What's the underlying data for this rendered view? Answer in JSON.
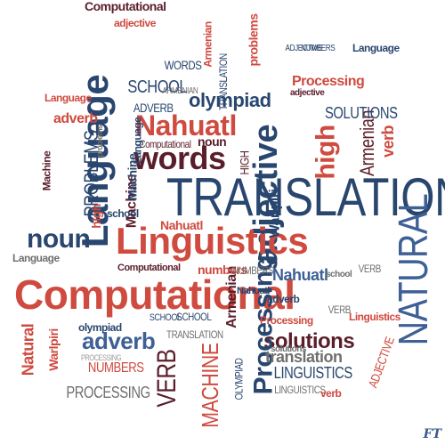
{
  "colors": {
    "red": "#cf4a3f",
    "navy": "#29466f",
    "maroon": "#5a1e2b",
    "grey": "#6f6f6f",
    "lightgrey": "#9a9a9a",
    "blue": "#3e6096"
  },
  "watermark": "FT",
  "words": [
    {
      "text": "Computational",
      "color": "maroon"
    },
    {
      "text": "adjective",
      "color": "navy"
    },
    {
      "text": "Language",
      "color": "navy"
    },
    {
      "text": "Nahuatl",
      "color": "red"
    },
    {
      "text": "words",
      "color": "maroon"
    },
    {
      "text": "olympiad",
      "color": "navy"
    },
    {
      "text": "TRANSLATION",
      "color": "navy"
    },
    {
      "text": "SCHOOL",
      "color": "navy"
    },
    {
      "text": "WORDS",
      "color": "navy"
    },
    {
      "text": "ADVERB",
      "color": "navy"
    },
    {
      "text": "problems",
      "color": "red"
    },
    {
      "text": "adverb",
      "color": "red"
    },
    {
      "text": "Processing",
      "color": "red"
    },
    {
      "text": "noun",
      "color": "maroon"
    },
    {
      "text": "high",
      "color": "red"
    },
    {
      "text": "verb",
      "color": "red"
    },
    {
      "text": "Armenian",
      "color": "maroon"
    },
    {
      "text": "SOLUTIONS",
      "color": "navy"
    },
    {
      "text": "PROBLEMS",
      "color": "navy"
    },
    {
      "text": "Computational",
      "color": "maroon"
    },
    {
      "text": "TRANSLATION",
      "color": "navy"
    },
    {
      "text": "Linguistics",
      "color": "red"
    },
    {
      "text": "noun",
      "color": "navy"
    },
    {
      "text": "Machine",
      "color": "maroon"
    },
    {
      "text": "NATURAL",
      "color": "blue"
    },
    {
      "text": "Language",
      "color": "grey"
    },
    {
      "text": "Computational",
      "color": "red"
    },
    {
      "text": "Nahuatl",
      "color": "blue"
    },
    {
      "text": "adverb",
      "color": "blue"
    },
    {
      "text": "solutions",
      "color": "maroon"
    },
    {
      "text": "Processing",
      "color": "navy"
    },
    {
      "text": "Natural",
      "color": "red"
    },
    {
      "text": "Warlpiri",
      "color": "red"
    },
    {
      "text": "VERB",
      "color": "maroon"
    },
    {
      "text": "MACHINE",
      "color": "red"
    },
    {
      "text": "NUMBERS",
      "color": "red"
    },
    {
      "text": "PROCESSING",
      "color": "grey"
    },
    {
      "text": "translation",
      "color": "grey"
    },
    {
      "text": "LINGUISTICS",
      "color": "navy"
    },
    {
      "text": "LINGUISTICS",
      "color": "grey"
    },
    {
      "text": "ADJECTIVE",
      "color": "red"
    },
    {
      "text": "Processing",
      "color": "red"
    },
    {
      "text": "Warlpiri",
      "color": "navy"
    },
    {
      "text": "Armenian",
      "color": "maroon"
    },
    {
      "text": "school",
      "color": "navy"
    },
    {
      "text": "Machine",
      "color": "navy"
    },
    {
      "text": "numbers",
      "color": "red"
    },
    {
      "text": "Nahuatl",
      "color": "red"
    },
    {
      "text": "Computational",
      "color": "maroon"
    },
    {
      "text": "Language",
      "color": "red"
    },
    {
      "text": "adjective",
      "color": "red"
    },
    {
      "text": "Linguistics",
      "color": "red"
    },
    {
      "text": "SCHOOL",
      "color": "navy"
    },
    {
      "text": "adjective",
      "color": "maroon"
    },
    {
      "text": "olympiad",
      "color": "navy"
    },
    {
      "text": "TRANSLATION",
      "color": "grey"
    },
    {
      "text": "solutions",
      "color": "grey"
    },
    {
      "text": "VERB",
      "color": "grey"
    },
    {
      "text": "HIGH",
      "color": "maroon"
    },
    {
      "text": "Language",
      "color": "navy"
    },
    {
      "text": "NUMBERS",
      "color": "grey"
    },
    {
      "text": "PROCESSING",
      "color": "lightgrey"
    },
    {
      "text": "Armenian",
      "color": "red"
    },
    {
      "text": "Nahuatl",
      "color": "navy"
    },
    {
      "text": "verb",
      "color": "red"
    },
    {
      "text": "SCHOOL",
      "color": "navy"
    },
    {
      "text": "problems",
      "color": "grey"
    },
    {
      "text": "ARMENIAN",
      "color": "grey"
    },
    {
      "text": "VERB",
      "color": "grey"
    },
    {
      "text": "OLYMPIAD",
      "color": "navy"
    },
    {
      "text": "ADJECTIVE",
      "color": "navy"
    },
    {
      "text": "high",
      "color": "red"
    },
    {
      "text": "school",
      "color": "grey"
    },
    {
      "text": "Machine",
      "color": "maroon"
    },
    {
      "text": "adverb",
      "color": "navy"
    },
    {
      "text": "NUMBERS",
      "color": "navy"
    },
    {
      "text": "Language",
      "color": "navy"
    }
  ]
}
